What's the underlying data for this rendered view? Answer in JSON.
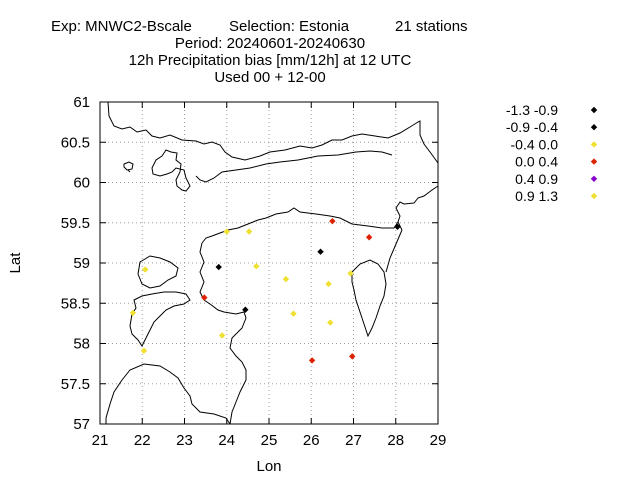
{
  "title": {
    "exp": "Exp: MNWC2-Bscale",
    "selection": "Selection: Estonia",
    "stations": "21 stations",
    "period": "Period: 20240601-20240630",
    "quantity": "12h Precipitation bias [mm/12h] at  12 UTC",
    "used": "Used 00 + 12-00"
  },
  "chart_data": {
    "type": "scatter",
    "xlabel": "Lon",
    "ylabel": "Lat",
    "xlim": [
      21,
      29
    ],
    "ylim": [
      57,
      61
    ],
    "xticks": [
      "21",
      "22",
      "23",
      "24",
      "25",
      "26",
      "27",
      "28",
      "29"
    ],
    "yticks": [
      "57",
      "57.5",
      "58",
      "58.5",
      "59",
      "59.5",
      "60",
      "60.5",
      "61"
    ],
    "grid": true,
    "legend_position": "right",
    "classes": [
      {
        "label": "-1.3 -0.9",
        "color": "#000000"
      },
      {
        "label": "-0.9 -0.4",
        "color": "#000000"
      },
      {
        "label": "-0.4 0.0",
        "color": "#f0e030"
      },
      {
        "label": "0.0 0.4",
        "color": "#dd2200"
      },
      {
        "label": "0.4 0.9",
        "color": "#8800cc"
      },
      {
        "label": "0.9 1.3",
        "color": "#f0e030"
      }
    ],
    "points": [
      {
        "lon": 28.04,
        "lat": 59.45,
        "cls": 0
      },
      {
        "lon": 23.81,
        "lat": 58.95,
        "cls": 1
      },
      {
        "lon": 26.22,
        "lat": 59.14,
        "cls": 1
      },
      {
        "lon": 24.44,
        "lat": 58.42,
        "cls": 1
      },
      {
        "lon": 23.47,
        "lat": 58.57,
        "cls": 3
      },
      {
        "lon": 26.5,
        "lat": 59.52,
        "cls": 3
      },
      {
        "lon": 27.37,
        "lat": 59.32,
        "cls": 3
      },
      {
        "lon": 26.02,
        "lat": 57.79,
        "cls": 3
      },
      {
        "lon": 26.97,
        "lat": 57.84,
        "cls": 3
      },
      {
        "lon": 22.07,
        "lat": 58.92,
        "cls": 2
      },
      {
        "lon": 24.0,
        "lat": 59.39,
        "cls": 2
      },
      {
        "lon": 24.53,
        "lat": 59.39,
        "cls": 2
      },
      {
        "lon": 24.7,
        "lat": 58.96,
        "cls": 2
      },
      {
        "lon": 25.4,
        "lat": 58.8,
        "cls": 2
      },
      {
        "lon": 26.93,
        "lat": 58.87,
        "cls": 2
      },
      {
        "lon": 26.41,
        "lat": 58.74,
        "cls": 2
      },
      {
        "lon": 21.78,
        "lat": 58.38,
        "cls": 2
      },
      {
        "lon": 25.58,
        "lat": 58.37,
        "cls": 2
      },
      {
        "lon": 26.45,
        "lat": 58.26,
        "cls": 2
      },
      {
        "lon": 23.89,
        "lat": 58.1,
        "cls": 2
      },
      {
        "lon": 22.04,
        "lat": 57.91,
        "cls": 2
      }
    ]
  }
}
